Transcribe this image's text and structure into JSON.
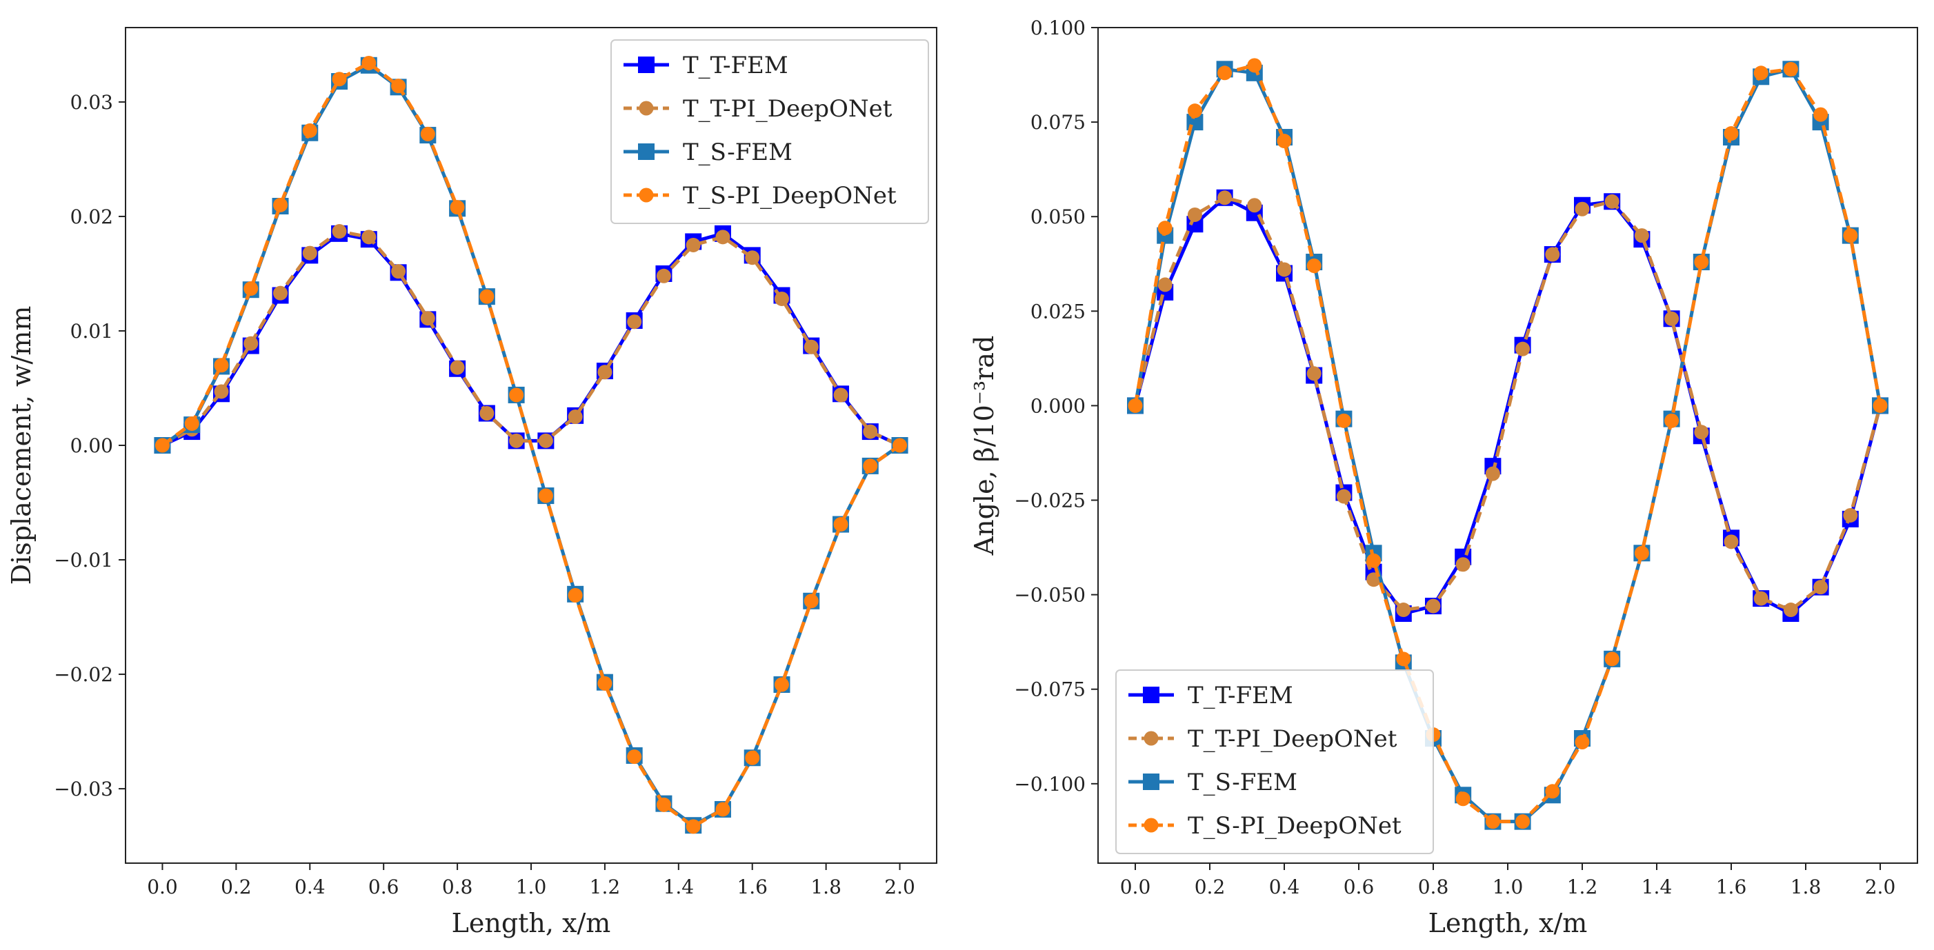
{
  "chart_data": [
    {
      "type": "line",
      "xlabel": "Length, x/m",
      "ylabel": "Displacement, w/mm",
      "xlim": [
        -0.1,
        2.1
      ],
      "ylim": [
        -0.0365,
        0.0365
      ],
      "xticks": [
        0.0,
        0.2,
        0.4,
        0.6,
        0.8,
        1.0,
        1.2,
        1.4,
        1.6,
        1.8,
        2.0
      ],
      "xtick_labels": [
        "0.0",
        "0.2",
        "0.4",
        "0.6",
        "0.8",
        "1.0",
        "1.2",
        "1.4",
        "1.6",
        "1.8",
        "2.0"
      ],
      "yticks": [
        -0.03,
        -0.02,
        -0.01,
        0.0,
        0.01,
        0.02,
        0.03
      ],
      "ytick_labels": [
        "−0.03",
        "−0.02",
        "−0.01",
        "0.00",
        "0.01",
        "0.02",
        "0.03"
      ],
      "legend_position": "top-right",
      "x": [
        0.0,
        0.08,
        0.16,
        0.24,
        0.32,
        0.4,
        0.48,
        0.56,
        0.64,
        0.72,
        0.8,
        0.88,
        0.96,
        1.04,
        1.12,
        1.2,
        1.28,
        1.36,
        1.44,
        1.52,
        1.6,
        1.68,
        1.76,
        1.84,
        1.92,
        2.0
      ],
      "series": [
        {
          "name": "T_T-FEM",
          "sub": "T",
          "suffix": "-FEM",
          "color": "#0000ff",
          "style": "solid",
          "marker": "square",
          "values": [
            0.0,
            0.0012,
            0.0045,
            0.0087,
            0.0131,
            0.0166,
            0.0185,
            0.018,
            0.0151,
            0.011,
            0.0067,
            0.0028,
            0.0004,
            0.0004,
            0.0026,
            0.0065,
            0.0109,
            0.015,
            0.0178,
            0.0185,
            0.0166,
            0.0131,
            0.0087,
            0.0045,
            0.0012,
            0.0
          ]
        },
        {
          "name": "T_T-PI_DeepONet",
          "sub": "T",
          "suffix": "-PI_DeepONet",
          "color": "#cd853f",
          "style": "dashed",
          "marker": "circle",
          "values": [
            0.0,
            0.0014,
            0.0047,
            0.0089,
            0.0133,
            0.0168,
            0.0187,
            0.0182,
            0.0152,
            0.0111,
            0.0068,
            0.0028,
            0.0004,
            0.0004,
            0.0025,
            0.0064,
            0.0108,
            0.0148,
            0.0175,
            0.0182,
            0.0164,
            0.0128,
            0.0086,
            0.0044,
            0.0012,
            0.0
          ]
        },
        {
          "name": "T_S-FEM",
          "sub": "S",
          "suffix": "-FEM",
          "color": "#1f77b4",
          "style": "solid",
          "marker": "square",
          "values": [
            0.0,
            0.0018,
            0.0069,
            0.0136,
            0.0209,
            0.0273,
            0.0318,
            0.0332,
            0.0313,
            0.0271,
            0.0207,
            0.013,
            0.0044,
            -0.0044,
            -0.013,
            -0.0207,
            -0.0271,
            -0.0313,
            -0.0332,
            -0.0318,
            -0.0273,
            -0.0209,
            -0.0136,
            -0.0069,
            -0.0018,
            0.0
          ]
        },
        {
          "name": "T_S-PI_DeepONet",
          "sub": "S",
          "suffix": "-PI_DeepONet",
          "color": "#ff7f0e",
          "style": "dashed",
          "marker": "circle",
          "values": [
            0.0,
            0.0019,
            0.007,
            0.0137,
            0.021,
            0.0275,
            0.032,
            0.0334,
            0.0314,
            0.0272,
            0.0208,
            0.013,
            0.0044,
            -0.0044,
            -0.0131,
            -0.0208,
            -0.0272,
            -0.0314,
            -0.0333,
            -0.0318,
            -0.0273,
            -0.0209,
            -0.0136,
            -0.0069,
            -0.0018,
            0.0
          ]
        }
      ]
    },
    {
      "type": "line",
      "xlabel": "Length, x/m",
      "ylabel": "Angle, β/10⁻³rad",
      "xlim": [
        -0.1,
        2.1
      ],
      "ylim": [
        -0.121,
        0.1
      ],
      "xticks": [
        0.0,
        0.2,
        0.4,
        0.6,
        0.8,
        1.0,
        1.2,
        1.4,
        1.6,
        1.8,
        2.0
      ],
      "xtick_labels": [
        "0.0",
        "0.2",
        "0.4",
        "0.6",
        "0.8",
        "1.0",
        "1.2",
        "1.4",
        "1.6",
        "1.8",
        "2.0"
      ],
      "yticks": [
        -0.1,
        -0.075,
        -0.05,
        -0.025,
        0.0,
        0.025,
        0.05,
        0.075,
        0.1
      ],
      "ytick_labels": [
        "−0.100",
        "−0.075",
        "−0.050",
        "−0.025",
        "0.000",
        "0.025",
        "0.050",
        "0.075",
        "0.100"
      ],
      "legend_position": "bottom-left",
      "x": [
        0.0,
        0.08,
        0.16,
        0.24,
        0.32,
        0.4,
        0.48,
        0.56,
        0.64,
        0.72,
        0.8,
        0.88,
        0.96,
        1.04,
        1.12,
        1.2,
        1.28,
        1.36,
        1.44,
        1.52,
        1.6,
        1.68,
        1.76,
        1.84,
        1.92,
        2.0
      ],
      "series": [
        {
          "name": "T_T-FEM",
          "sub": "T",
          "suffix": "-FEM",
          "color": "#0000ff",
          "style": "solid",
          "marker": "square",
          "values": [
            0.0,
            0.03,
            0.048,
            0.055,
            0.051,
            0.035,
            0.008,
            -0.023,
            -0.044,
            -0.055,
            -0.053,
            -0.04,
            -0.016,
            0.016,
            0.04,
            0.053,
            0.054,
            0.044,
            0.023,
            -0.008,
            -0.035,
            -0.051,
            -0.055,
            -0.048,
            -0.03,
            0.0
          ]
        },
        {
          "name": "T_T-PI_DeepONet",
          "sub": "T",
          "suffix": "-PI_DeepONet",
          "color": "#cd853f",
          "style": "dashed",
          "marker": "circle",
          "values": [
            0.0,
            0.032,
            0.0505,
            0.055,
            0.053,
            0.036,
            0.0085,
            -0.024,
            -0.046,
            -0.054,
            -0.053,
            -0.042,
            -0.018,
            0.015,
            0.04,
            0.052,
            0.054,
            0.045,
            0.023,
            -0.007,
            -0.036,
            -0.051,
            -0.054,
            -0.048,
            -0.029,
            0.0
          ]
        },
        {
          "name": "T_S-FEM",
          "sub": "S",
          "suffix": "-FEM",
          "color": "#1f77b4",
          "style": "solid",
          "marker": "square",
          "values": [
            0.0,
            0.045,
            0.075,
            0.089,
            0.088,
            0.071,
            0.038,
            -0.0035,
            -0.039,
            -0.068,
            -0.088,
            -0.103,
            -0.11,
            -0.11,
            -0.103,
            -0.088,
            -0.067,
            -0.039,
            -0.0035,
            0.038,
            0.071,
            0.087,
            0.089,
            0.075,
            0.045,
            0.0
          ]
        },
        {
          "name": "T_S-PI_DeepONet",
          "sub": "S",
          "suffix": "-PI_DeepONet",
          "color": "#ff7f0e",
          "style": "dashed",
          "marker": "circle",
          "values": [
            0.0,
            0.047,
            0.078,
            0.088,
            0.09,
            0.07,
            0.037,
            -0.004,
            -0.041,
            -0.067,
            -0.087,
            -0.104,
            -0.11,
            -0.11,
            -0.102,
            -0.089,
            -0.067,
            -0.039,
            -0.004,
            0.038,
            0.072,
            0.088,
            0.089,
            0.077,
            0.045,
            0.0
          ]
        }
      ]
    }
  ]
}
